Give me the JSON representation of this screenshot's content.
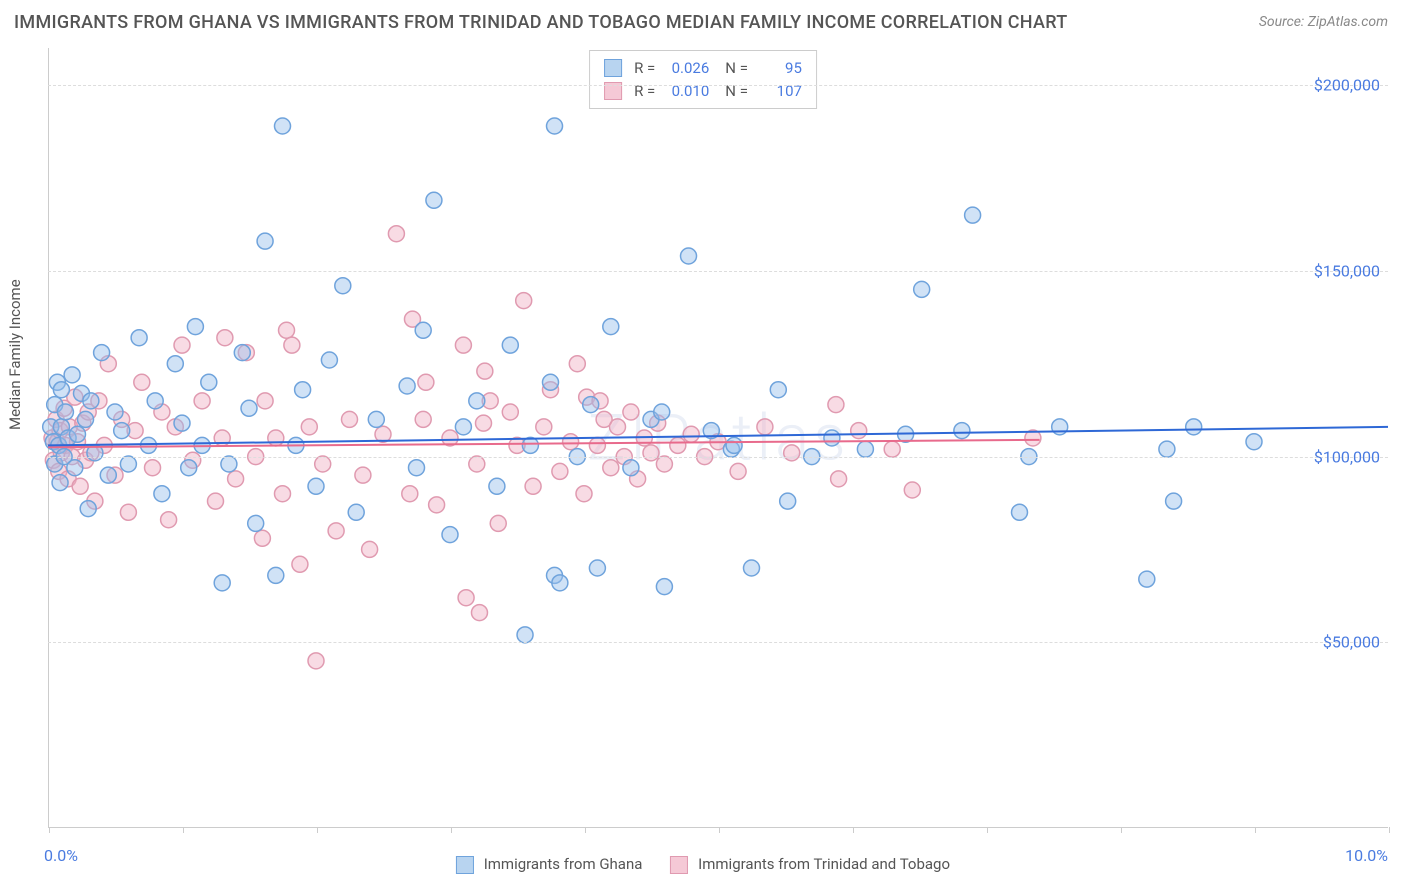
{
  "title": "IMMIGRANTS FROM GHANA VS IMMIGRANTS FROM TRINIDAD AND TOBAGO MEDIAN FAMILY INCOME CORRELATION CHART",
  "source": "Source: ZipAtlas.com",
  "watermark": "ZIPatlas",
  "ylabel": "Median Family Income",
  "chart": {
    "type": "scatter",
    "background_color": "#ffffff",
    "grid_color": "#dddddd",
    "axis_color": "#cccccc",
    "text_color": "#555555",
    "value_color": "#4a7be0",
    "x": {
      "min": 0.0,
      "max": 10.0,
      "label_min": "0.0%",
      "label_max": "10.0%",
      "ticks_percent": [
        0,
        1,
        2,
        3,
        4,
        5,
        6,
        7,
        8,
        9,
        10
      ]
    },
    "y": {
      "min": 0,
      "max": 210000,
      "gridlines": [
        50000,
        100000,
        150000,
        200000
      ],
      "tick_labels": [
        "$50,000",
        "$100,000",
        "$150,000",
        "$200,000"
      ]
    },
    "marker_radius": 8,
    "marker_stroke_width": 1.5,
    "line_width": 2,
    "series": [
      {
        "name": "Immigrants from Ghana",
        "fill": "rgba(150,190,235,0.45)",
        "stroke": "#6fa3dc",
        "swatch_fill": "#b8d4f0",
        "swatch_border": "#6fa3dc",
        "r_value": "0.026",
        "n_value": "95",
        "trend": {
          "x1": 0.0,
          "y1": 103000,
          "x2": 10.0,
          "y2": 108000,
          "color": "#2e68d6"
        },
        "points": [
          [
            0.02,
            108000
          ],
          [
            0.04,
            104000
          ],
          [
            0.05,
            114000
          ],
          [
            0.05,
            98000
          ],
          [
            0.07,
            120000
          ],
          [
            0.08,
            103000
          ],
          [
            0.09,
            93000
          ],
          [
            0.1,
            108000
          ],
          [
            0.1,
            118000
          ],
          [
            0.12,
            100000
          ],
          [
            0.13,
            112000
          ],
          [
            0.15,
            105000
          ],
          [
            0.18,
            122000
          ],
          [
            0.2,
            97000
          ],
          [
            0.22,
            106000
          ],
          [
            0.25,
            117000
          ],
          [
            0.28,
            110000
          ],
          [
            0.3,
            86000
          ],
          [
            0.32,
            115000
          ],
          [
            0.35,
            101000
          ],
          [
            0.4,
            128000
          ],
          [
            0.45,
            95000
          ],
          [
            0.5,
            112000
          ],
          [
            0.55,
            107000
          ],
          [
            0.6,
            98000
          ],
          [
            0.68,
            132000
          ],
          [
            0.75,
            103000
          ],
          [
            0.8,
            115000
          ],
          [
            0.85,
            90000
          ],
          [
            0.95,
            125000
          ],
          [
            1.0,
            109000
          ],
          [
            1.05,
            97000
          ],
          [
            1.1,
            135000
          ],
          [
            1.15,
            103000
          ],
          [
            1.2,
            120000
          ],
          [
            1.3,
            66000
          ],
          [
            1.35,
            98000
          ],
          [
            1.45,
            128000
          ],
          [
            1.5,
            113000
          ],
          [
            1.55,
            82000
          ],
          [
            1.62,
            158000
          ],
          [
            1.7,
            68000
          ],
          [
            1.75,
            189000
          ],
          [
            1.85,
            103000
          ],
          [
            1.9,
            118000
          ],
          [
            2.0,
            92000
          ],
          [
            2.1,
            126000
          ],
          [
            2.2,
            146000
          ],
          [
            2.3,
            85000
          ],
          [
            2.45,
            110000
          ],
          [
            2.68,
            119000
          ],
          [
            2.75,
            97000
          ],
          [
            2.8,
            134000
          ],
          [
            2.88,
            169000
          ],
          [
            3.0,
            79000
          ],
          [
            3.1,
            108000
          ],
          [
            3.2,
            115000
          ],
          [
            3.35,
            92000
          ],
          [
            3.45,
            130000
          ],
          [
            3.56,
            52000
          ],
          [
            3.6,
            103000
          ],
          [
            3.75,
            120000
          ],
          [
            3.78,
            68000
          ],
          [
            3.78,
            189000
          ],
          [
            3.82,
            66000
          ],
          [
            3.95,
            100000
          ],
          [
            4.05,
            114000
          ],
          [
            4.1,
            70000
          ],
          [
            4.2,
            135000
          ],
          [
            4.35,
            97000
          ],
          [
            4.5,
            110000
          ],
          [
            4.58,
            112000
          ],
          [
            4.6,
            65000
          ],
          [
            4.78,
            154000
          ],
          [
            4.95,
            107000
          ],
          [
            5.1,
            102000
          ],
          [
            5.12,
            103000
          ],
          [
            5.25,
            70000
          ],
          [
            5.45,
            118000
          ],
          [
            5.52,
            88000
          ],
          [
            5.7,
            100000
          ],
          [
            5.85,
            105000
          ],
          [
            6.1,
            102000
          ],
          [
            6.4,
            106000
          ],
          [
            6.52,
            145000
          ],
          [
            6.82,
            107000
          ],
          [
            6.9,
            165000
          ],
          [
            7.25,
            85000
          ],
          [
            7.32,
            100000
          ],
          [
            7.55,
            108000
          ],
          [
            8.2,
            67000
          ],
          [
            8.35,
            102000
          ],
          [
            8.4,
            88000
          ],
          [
            8.55,
            108000
          ],
          [
            9.0,
            104000
          ]
        ]
      },
      {
        "name": "Immigrants from Trinidad and Tobago",
        "fill": "rgba(240,175,195,0.45)",
        "stroke": "#e09ab0",
        "swatch_fill": "#f5c9d6",
        "swatch_border": "#e09ab0",
        "r_value": "0.010",
        "n_value": "107",
        "trend": {
          "x1": 0.0,
          "y1": 102500,
          "x2": 7.4,
          "y2": 104500,
          "color": "#e86a8c"
        },
        "points": [
          [
            0.03,
            105000
          ],
          [
            0.04,
            99000
          ],
          [
            0.06,
            110000
          ],
          [
            0.07,
            104000
          ],
          [
            0.08,
            96000
          ],
          [
            0.09,
            107000
          ],
          [
            0.1,
            101000
          ],
          [
            0.12,
            113000
          ],
          [
            0.13,
            103000
          ],
          [
            0.15,
            94000
          ],
          [
            0.16,
            108000
          ],
          [
            0.18,
            100000
          ],
          [
            0.2,
            116000
          ],
          [
            0.22,
            104000
          ],
          [
            0.24,
            92000
          ],
          [
            0.26,
            109000
          ],
          [
            0.28,
            99000
          ],
          [
            0.3,
            112000
          ],
          [
            0.32,
            101000
          ],
          [
            0.35,
            88000
          ],
          [
            0.38,
            115000
          ],
          [
            0.42,
            103000
          ],
          [
            0.45,
            125000
          ],
          [
            0.5,
            95000
          ],
          [
            0.55,
            110000
          ],
          [
            0.6,
            85000
          ],
          [
            0.65,
            107000
          ],
          [
            0.7,
            120000
          ],
          [
            0.78,
            97000
          ],
          [
            0.85,
            112000
          ],
          [
            0.9,
            83000
          ],
          [
            0.95,
            108000
          ],
          [
            1.0,
            130000
          ],
          [
            1.08,
            99000
          ],
          [
            1.15,
            115000
          ],
          [
            1.25,
            88000
          ],
          [
            1.3,
            105000
          ],
          [
            1.32,
            132000
          ],
          [
            1.4,
            94000
          ],
          [
            1.48,
            128000
          ],
          [
            1.55,
            100000
          ],
          [
            1.6,
            78000
          ],
          [
            1.62,
            115000
          ],
          [
            1.7,
            105000
          ],
          [
            1.75,
            90000
          ],
          [
            1.78,
            134000
          ],
          [
            1.82,
            130000
          ],
          [
            1.88,
            71000
          ],
          [
            1.95,
            108000
          ],
          [
            2.0,
            45000
          ],
          [
            2.05,
            98000
          ],
          [
            2.15,
            80000
          ],
          [
            2.25,
            110000
          ],
          [
            2.35,
            95000
          ],
          [
            2.4,
            75000
          ],
          [
            2.5,
            106000
          ],
          [
            2.6,
            160000
          ],
          [
            2.7,
            90000
          ],
          [
            2.72,
            137000
          ],
          [
            2.8,
            110000
          ],
          [
            2.82,
            120000
          ],
          [
            2.9,
            87000
          ],
          [
            3.0,
            105000
          ],
          [
            3.1,
            130000
          ],
          [
            3.12,
            62000
          ],
          [
            3.2,
            98000
          ],
          [
            3.22,
            58000
          ],
          [
            3.25,
            109000
          ],
          [
            3.26,
            123000
          ],
          [
            3.3,
            115000
          ],
          [
            3.36,
            82000
          ],
          [
            3.45,
            112000
          ],
          [
            3.5,
            103000
          ],
          [
            3.55,
            142000
          ],
          [
            3.62,
            92000
          ],
          [
            3.7,
            108000
          ],
          [
            3.75,
            118000
          ],
          [
            3.82,
            96000
          ],
          [
            3.9,
            104000
          ],
          [
            3.95,
            125000
          ],
          [
            4.0,
            90000
          ],
          [
            4.02,
            116000
          ],
          [
            4.1,
            103000
          ],
          [
            4.12,
            115000
          ],
          [
            4.15,
            110000
          ],
          [
            4.2,
            97000
          ],
          [
            4.25,
            108000
          ],
          [
            4.3,
            100000
          ],
          [
            4.35,
            112000
          ],
          [
            4.4,
            94000
          ],
          [
            4.45,
            105000
          ],
          [
            4.5,
            101000
          ],
          [
            4.55,
            109000
          ],
          [
            4.6,
            98000
          ],
          [
            4.7,
            103000
          ],
          [
            4.8,
            106000
          ],
          [
            4.9,
            100000
          ],
          [
            5.0,
            104000
          ],
          [
            5.15,
            96000
          ],
          [
            5.35,
            108000
          ],
          [
            5.55,
            101000
          ],
          [
            5.88,
            114000
          ],
          [
            5.9,
            94000
          ],
          [
            6.05,
            107000
          ],
          [
            6.3,
            102000
          ],
          [
            6.45,
            91000
          ],
          [
            7.35,
            105000
          ]
        ]
      }
    ],
    "legend_top_labels": {
      "r_label": "R =",
      "n_label": "N ="
    },
    "legend_bottom_labels": [
      "Immigrants from Ghana",
      "Immigrants from Trinidad and Tobago"
    ]
  }
}
